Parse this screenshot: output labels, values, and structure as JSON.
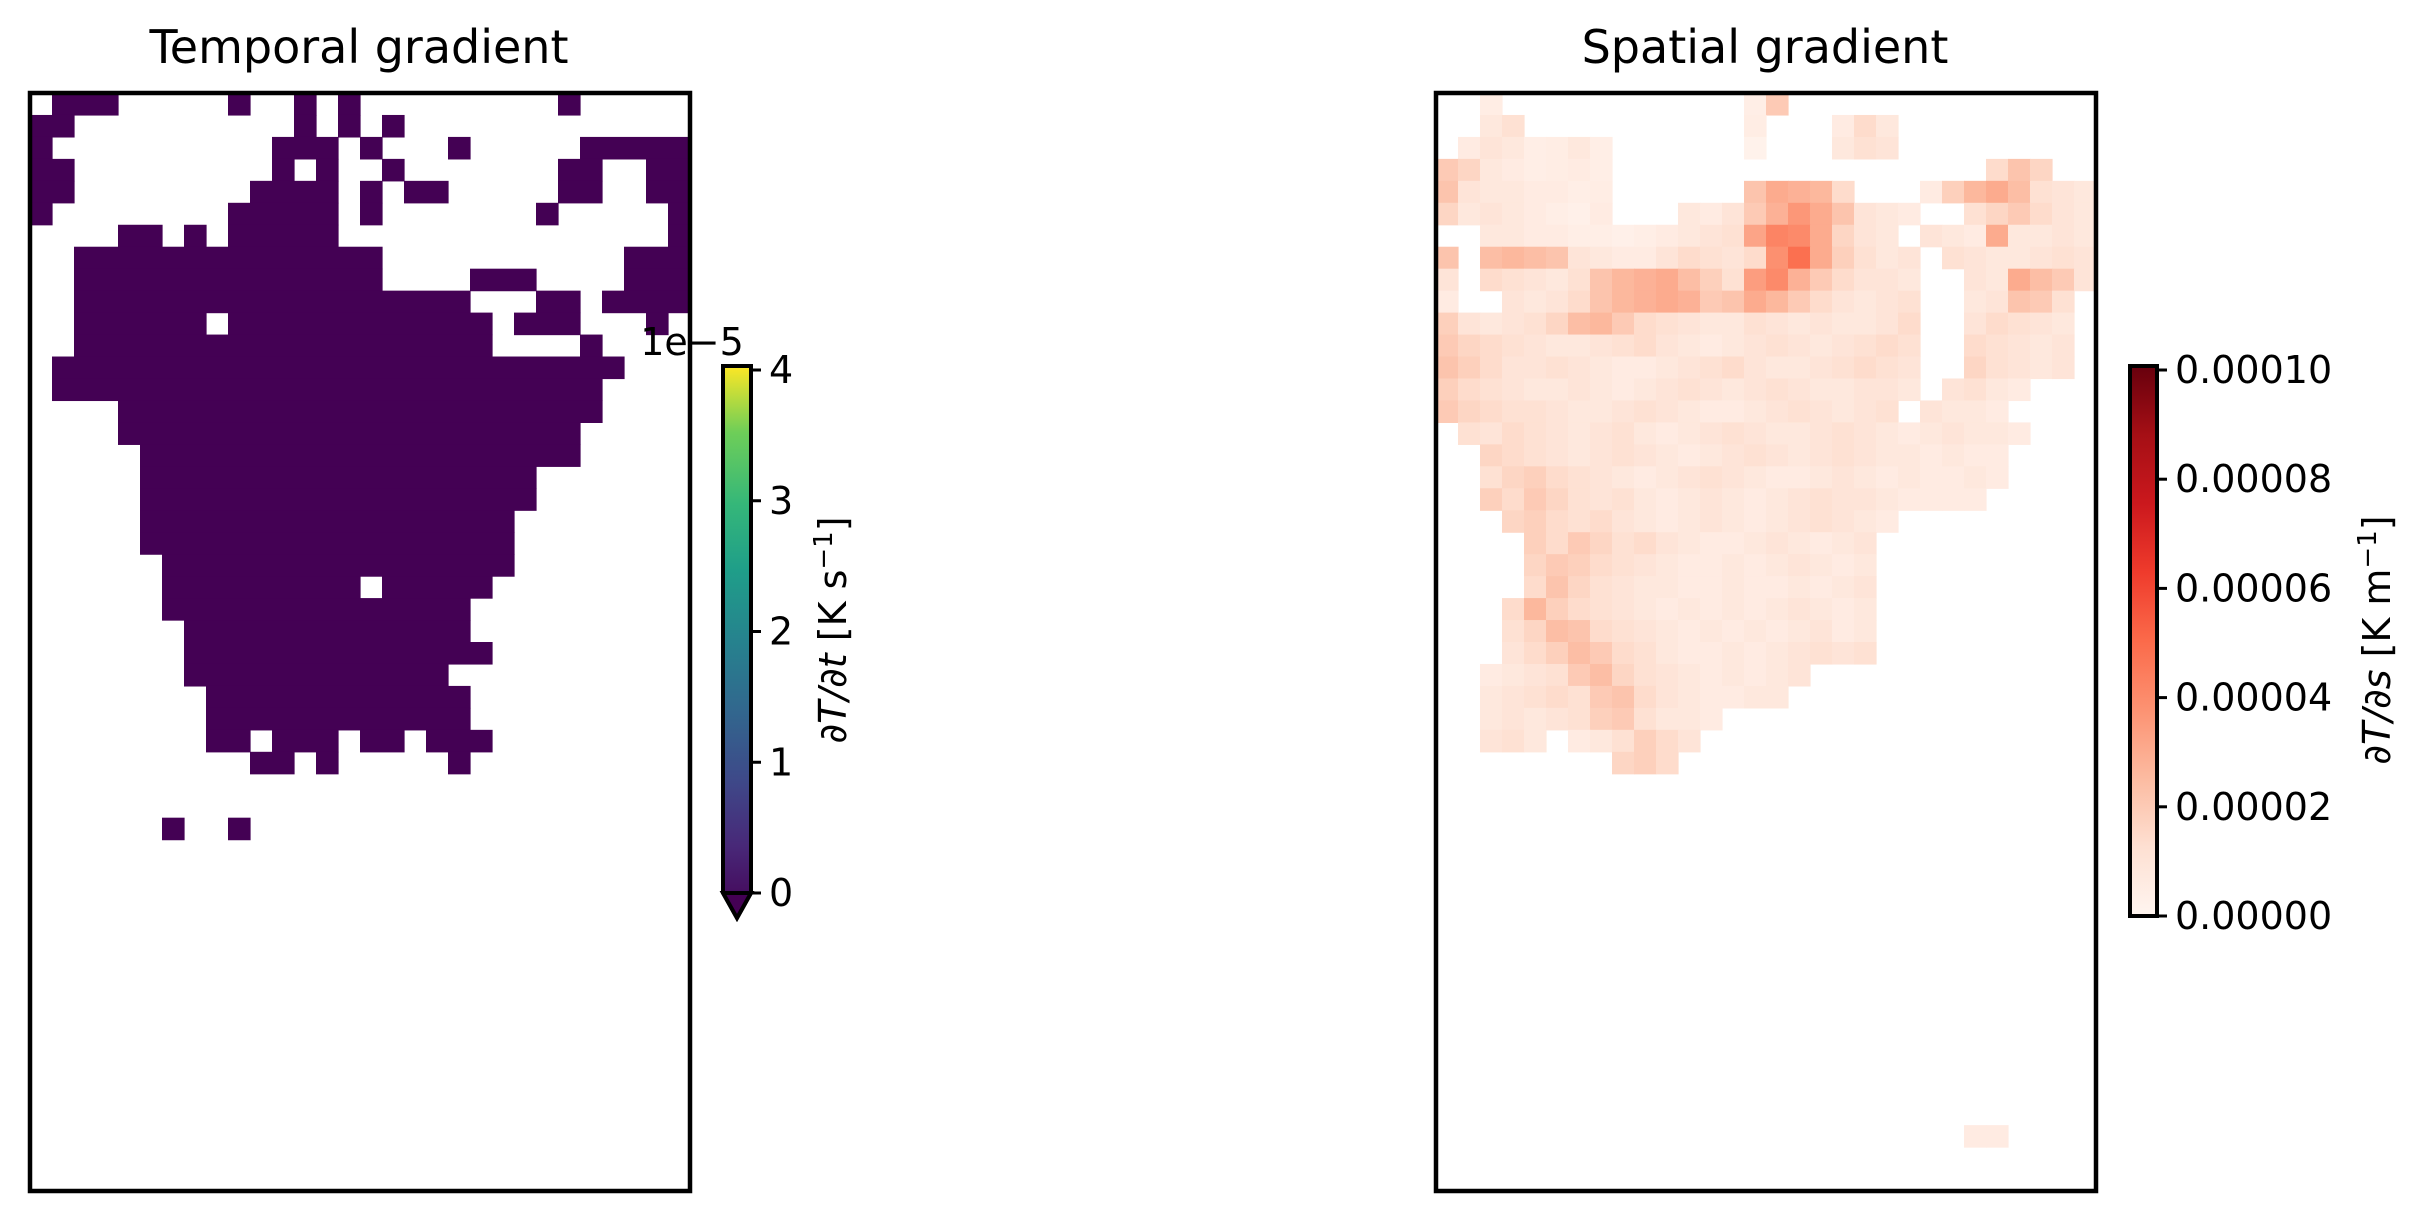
{
  "chart_data": [
    {
      "type": "heatmap",
      "title": "Temporal gradient",
      "colormap": "viridis",
      "colorbar": {
        "label": "∂T/∂t [K s⁻¹]",
        "label_parts": [
          "∂T/∂t",
          " [K s",
          "−1",
          "]"
        ],
        "offset_text": "1e−5",
        "scale": 1e-05,
        "ticks": [
          "0",
          "1",
          "2",
          "3",
          "4"
        ],
        "range": [
          0,
          4e-05
        ],
        "extend": "min"
      },
      "grid": {
        "rows": 50,
        "cols": 30
      },
      "value_note": "all visible cells at or below 0 (darkest color); white = no data",
      "mask": [
        "11110000000101000001000000000000",
        "11000000000011010000000000000000",
        "10000000000011111000000000000000",
        "11000000000100110000000000000000",
        "11110000001000000000000000000000",
        "11100000011000000000000000000000",
        "11110011111000000000000000000000",
        "11111111111111111111111100000000",
        "11111111111111111111111111000000",
        "11111111111111111111111111100000",
        "11111111111111111111111111100000",
        "11111111111111111111111111000000",
        "11111111111111111111111110000000",
        "11111111111111111111111100000000",
        "11111111111111111111111000000000",
        "11111111111111111111110000000000",
        "11111111111111111111110000000000",
        "11111111111111111111110000000000",
        "11111111111111111111100000000000",
        "11111111111111111111100000000000",
        "11111111111111111111000000000000",
        "11111111111111111111000000000000",
        "11111111111111111111000000000000",
        "11111111111111111111000000000000",
        "11111111111111111111000000000000",
        "11111111111111111111000000000000",
        "11111111111111111111000000000000",
        "11111111111111111111000000000000",
        "11111111111111111111000000000000",
        "11111111111111111111000000000000",
        "11111111111111111111000000000000",
        "11111111111111111111000000000000",
        "11111111111111111111000000000000",
        "11111111111111111111000000000000",
        "11111111111111111111000000000000"
      ],
      "shape_rows": [
        [
          0,
          1,
          4
        ],
        [
          0,
          9,
          10
        ],
        [
          0,
          12,
          13
        ],
        [
          0,
          14,
          15
        ],
        [
          0,
          24,
          25
        ],
        [
          1,
          0,
          2
        ],
        [
          1,
          12,
          13
        ],
        [
          1,
          14,
          15
        ],
        [
          1,
          16,
          17
        ],
        [
          2,
          0,
          1
        ],
        [
          2,
          11,
          14
        ],
        [
          2,
          15,
          16
        ],
        [
          2,
          19,
          20
        ],
        [
          2,
          25,
          30
        ],
        [
          3,
          0,
          2
        ],
        [
          3,
          11,
          12
        ],
        [
          3,
          13,
          14
        ],
        [
          3,
          16,
          17
        ],
        [
          3,
          24,
          26
        ],
        [
          3,
          28,
          30
        ],
        [
          4,
          0,
          2
        ],
        [
          4,
          10,
          14
        ],
        [
          4,
          15,
          16
        ],
        [
          4,
          17,
          19
        ],
        [
          4,
          24,
          26
        ],
        [
          4,
          28,
          30
        ],
        [
          5,
          0,
          1
        ],
        [
          5,
          9,
          14
        ],
        [
          5,
          15,
          16
        ],
        [
          5,
          23,
          24
        ],
        [
          5,
          29,
          30
        ],
        [
          6,
          4,
          6
        ],
        [
          6,
          7,
          8
        ],
        [
          6,
          9,
          14
        ],
        [
          6,
          29,
          30
        ],
        [
          7,
          2,
          16
        ],
        [
          7,
          27,
          30
        ],
        [
          8,
          2,
          16
        ],
        [
          8,
          20,
          23
        ],
        [
          8,
          27,
          30
        ],
        [
          9,
          2,
          20
        ],
        [
          9,
          23,
          25
        ],
        [
          9,
          26,
          30
        ],
        [
          10,
          2,
          8
        ],
        [
          10,
          9,
          21
        ],
        [
          10,
          22,
          25
        ],
        [
          10,
          28,
          29
        ],
        [
          11,
          2,
          21
        ],
        [
          11,
          25,
          26
        ],
        [
          12,
          1,
          27
        ],
        [
          13,
          1,
          26
        ],
        [
          14,
          4,
          26
        ],
        [
          15,
          4,
          25
        ],
        [
          16,
          5,
          25
        ],
        [
          17,
          5,
          23
        ],
        [
          18,
          5,
          23
        ],
        [
          19,
          5,
          22
        ],
        [
          20,
          5,
          22
        ],
        [
          21,
          6,
          22
        ],
        [
          22,
          6,
          15
        ],
        [
          22,
          16,
          21
        ],
        [
          23,
          6,
          20
        ],
        [
          24,
          7,
          20
        ],
        [
          25,
          7,
          21
        ],
        [
          26,
          7,
          19
        ],
        [
          27,
          8,
          20
        ],
        [
          28,
          8,
          20
        ],
        [
          29,
          8,
          10
        ],
        [
          29,
          11,
          14
        ],
        [
          29,
          15,
          17
        ],
        [
          29,
          18,
          21
        ],
        [
          30,
          10,
          12
        ],
        [
          30,
          13,
          14
        ],
        [
          30,
          19,
          20
        ],
        [
          33,
          6,
          7
        ],
        [
          33,
          9,
          10
        ]
      ]
    },
    {
      "type": "heatmap",
      "title": "Spatial gradient",
      "colormap": "Reds",
      "colorbar": {
        "label": "∂T/∂s [K m⁻¹]",
        "label_parts": [
          "∂T/∂s",
          " [K m",
          "−1",
          "]"
        ],
        "ticks": [
          "0.00000",
          "0.00002",
          "0.00004",
          "0.00006",
          "0.00008",
          "0.00010"
        ],
        "range": [
          0,
          0.0001
        ]
      },
      "grid": {
        "rows": 50,
        "cols": 30
      },
      "cells": [
        [
          0,
          2,
          3,
          5,
          10,
          20,
          22
        ],
        [
          0,
          14,
          16,
          4,
          20,
          22,
          6
        ],
        [
          1,
          2,
          4,
          8,
          12,
          6,
          8
        ],
        [
          1,
          18,
          21,
          6,
          14,
          8,
          4
        ],
        [
          1,
          14,
          15,
          5
        ],
        [
          2,
          1,
          8,
          6,
          10,
          8,
          4,
          5,
          8,
          4
        ],
        [
          2,
          14,
          15,
          2
        ],
        [
          2,
          18,
          21,
          8,
          12,
          10
        ],
        [
          3,
          0,
          8,
          20,
          16,
          8,
          6,
          4,
          5,
          6,
          4
        ],
        [
          3,
          25,
          28,
          14,
          22,
          16
        ],
        [
          4,
          0,
          8,
          22,
          10,
          8,
          8,
          6,
          6,
          4,
          5
        ],
        [
          4,
          14,
          19,
          22,
          30,
          28,
          26,
          14
        ],
        [
          4,
          22,
          23,
          6
        ],
        [
          4,
          23,
          30,
          18,
          26,
          30,
          24,
          12,
          10,
          8
        ],
        [
          5,
          0,
          8,
          16,
          8,
          10,
          8,
          6,
          4,
          3,
          6
        ],
        [
          5,
          11,
          22,
          8,
          6,
          10,
          20,
          28,
          36,
          30,
          22,
          10,
          8,
          6
        ],
        [
          5,
          24,
          30,
          12,
          16,
          20,
          14,
          10,
          8
        ],
        [
          6,
          2,
          13,
          8,
          8,
          6,
          6,
          4,
          4,
          3,
          4,
          6,
          8,
          10
        ],
        [
          6,
          13,
          21,
          12,
          32,
          42,
          40,
          30,
          16,
          10,
          8
        ],
        [
          6,
          22,
          30,
          10,
          8,
          6,
          30,
          8,
          8,
          10,
          8
        ],
        [
          7,
          0,
          1,
          22
        ],
        [
          7,
          2,
          22,
          24,
          26,
          24,
          22,
          10,
          8,
          6,
          6,
          10,
          14,
          12,
          10,
          14,
          38,
          48,
          30,
          18,
          12,
          8,
          10
        ],
        [
          7,
          23,
          30,
          12,
          10,
          8,
          8,
          10,
          12,
          10
        ],
        [
          8,
          0,
          1,
          10
        ],
        [
          8,
          2,
          22,
          14,
          12,
          10,
          8,
          12,
          22,
          26,
          28,
          30,
          24,
          18,
          12,
          34,
          40,
          28,
          20,
          14,
          10,
          10,
          8
        ],
        [
          8,
          24,
          30,
          10,
          8,
          30,
          24,
          20,
          10
        ],
        [
          9,
          0,
          1,
          6
        ],
        [
          9,
          3,
          22,
          10,
          8,
          10,
          14,
          22,
          26,
          28,
          30,
          28,
          20,
          22,
          30,
          26,
          20,
          14,
          10,
          8,
          10,
          12
        ],
        [
          9,
          24,
          29,
          8,
          10,
          22,
          20,
          12
        ],
        [
          10,
          0,
          22,
          18,
          10,
          8,
          10,
          12,
          16,
          24,
          26,
          20,
          14,
          12,
          10,
          8,
          8,
          12,
          10,
          8,
          10,
          8,
          8,
          10,
          14
        ],
        [
          10,
          24,
          29,
          10,
          14,
          12,
          10,
          8
        ],
        [
          11,
          0,
          22,
          20,
          16,
          14,
          12,
          10,
          8,
          8,
          10,
          12,
          14,
          10,
          8,
          6,
          8,
          10,
          12,
          10,
          8,
          10,
          12,
          14,
          12
        ],
        [
          11,
          24,
          29,
          14,
          12,
          10,
          8,
          10
        ],
        [
          12,
          0,
          22,
          22,
          18,
          14,
          10,
          10,
          12,
          10,
          8,
          6,
          6,
          8,
          10,
          12,
          14,
          10,
          8,
          8,
          10,
          12,
          14,
          12,
          10
        ],
        [
          12,
          24,
          29,
          16,
          12,
          10,
          8,
          10
        ],
        [
          13,
          0,
          22,
          18,
          14,
          12,
          10,
          8,
          8,
          10,
          8,
          6,
          8,
          10,
          12,
          10,
          8,
          10,
          12,
          10,
          8,
          8,
          10,
          10,
          8
        ],
        [
          13,
          23,
          27,
          10,
          12,
          8,
          6
        ],
        [
          14,
          0,
          21,
          20,
          16,
          14,
          12,
          12,
          10,
          8,
          8,
          10,
          12,
          10,
          8,
          6,
          6,
          8,
          10,
          12,
          10,
          8,
          10,
          12
        ],
        [
          14,
          22,
          26,
          10,
          8,
          8,
          6
        ],
        [
          15,
          1,
          21,
          12,
          10,
          14,
          12,
          10,
          8,
          10,
          12,
          8,
          6,
          8,
          10,
          12,
          10,
          8,
          8,
          10,
          12,
          10,
          8
        ],
        [
          15,
          21,
          27,
          6,
          8,
          10,
          8,
          8,
          6
        ],
        [
          16,
          2,
          21,
          16,
          14,
          12,
          10,
          8,
          10,
          12,
          10,
          8,
          6,
          8,
          10,
          12,
          10,
          8,
          10,
          12,
          10,
          8
        ],
        [
          16,
          21,
          26,
          8,
          6,
          8,
          6,
          6
        ],
        [
          17,
          2,
          20,
          12,
          16,
          18,
          14,
          12,
          10,
          8,
          6,
          8,
          10,
          12,
          10,
          8,
          6,
          6,
          8,
          10,
          8
        ],
        [
          17,
          20,
          26,
          6,
          8,
          6,
          6,
          8,
          6
        ],
        [
          18,
          2,
          19,
          18,
          14,
          20,
          16,
          12,
          10,
          12,
          8,
          6,
          8,
          10,
          8,
          6,
          8,
          10,
          12,
          10
        ],
        [
          18,
          19,
          25,
          10,
          8,
          6,
          6,
          6,
          6
        ],
        [
          19,
          3,
          19,
          16,
          18,
          14,
          12,
          14,
          10,
          8,
          6,
          8,
          10,
          8,
          6,
          8,
          10,
          12,
          10
        ],
        [
          19,
          19,
          21,
          8,
          6
        ],
        [
          20,
          4,
          20,
          18,
          14,
          20,
          16,
          12,
          14,
          10,
          8,
          6,
          6,
          8,
          10,
          8,
          6,
          8,
          10
        ],
        [
          21,
          4,
          20,
          16,
          20,
          18,
          14,
          12,
          10,
          8,
          6,
          6,
          8,
          6,
          8,
          10,
          8,
          6,
          8
        ],
        [
          22,
          4,
          20,
          14,
          22,
          16,
          12,
          10,
          8,
          8,
          6,
          6,
          8,
          6,
          6,
          8,
          6,
          8,
          10
        ],
        [
          23,
          3,
          20,
          14,
          26,
          18,
          14,
          12,
          10,
          8,
          6,
          8,
          6,
          8,
          6,
          8,
          10,
          8,
          6,
          8
        ],
        [
          24,
          3,
          20,
          12,
          16,
          24,
          22,
          14,
          12,
          10,
          8,
          6,
          8,
          6,
          8,
          6,
          8,
          10,
          6,
          8
        ],
        [
          25,
          3,
          20,
          10,
          14,
          18,
          24,
          20,
          14,
          12,
          8,
          6,
          6,
          8,
          6,
          8,
          10,
          12,
          10,
          12
        ],
        [
          26,
          2,
          17,
          6,
          8,
          10,
          12,
          20,
          24,
          16,
          12,
          10,
          8,
          6,
          8,
          6,
          8,
          10
        ],
        [
          27,
          2,
          16,
          8,
          10,
          12,
          14,
          12,
          20,
          22,
          14,
          10,
          8,
          6,
          6,
          8,
          8
        ],
        [
          28,
          2,
          13,
          8,
          10,
          8,
          10,
          12,
          18,
          20,
          12,
          8,
          8,
          6
        ],
        [
          29,
          2,
          5,
          10,
          12,
          8
        ],
        [
          29,
          6,
          12,
          6,
          8,
          12,
          18,
          14,
          10
        ],
        [
          30,
          8,
          11,
          16,
          18,
          14
        ],
        [
          47,
          24,
          26,
          6,
          6
        ]
      ]
    }
  ]
}
